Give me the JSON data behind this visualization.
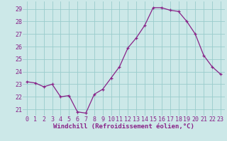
{
  "x": [
    0,
    1,
    2,
    3,
    4,
    5,
    6,
    7,
    8,
    9,
    10,
    11,
    12,
    13,
    14,
    15,
    16,
    17,
    18,
    19,
    20,
    21,
    22,
    23
  ],
  "y": [
    23.2,
    23.1,
    22.8,
    23.0,
    22.0,
    22.1,
    20.8,
    20.7,
    22.2,
    22.6,
    23.5,
    24.4,
    25.9,
    26.7,
    27.7,
    29.1,
    29.1,
    28.9,
    28.8,
    28.0,
    27.0,
    25.3,
    24.4,
    23.8
  ],
  "line_color": "#882288",
  "marker": "+",
  "bg_color": "#cce8e8",
  "grid_color": "#99cccc",
  "xlabel": "Windchill (Refroidissement éolien,°C)",
  "ylim": [
    20.5,
    29.6
  ],
  "xlim": [
    -0.5,
    23.5
  ],
  "yticks": [
    21,
    22,
    23,
    24,
    25,
    26,
    27,
    28,
    29
  ],
  "xticks": [
    0,
    1,
    2,
    3,
    4,
    5,
    6,
    7,
    8,
    9,
    10,
    11,
    12,
    13,
    14,
    15,
    16,
    17,
    18,
    19,
    20,
    21,
    22,
    23
  ],
  "xlabel_fontsize": 6.5,
  "tick_fontsize": 6.0,
  "xlabel_color": "#882288",
  "tick_color": "#882288",
  "line_width": 0.9,
  "marker_size": 3.0
}
